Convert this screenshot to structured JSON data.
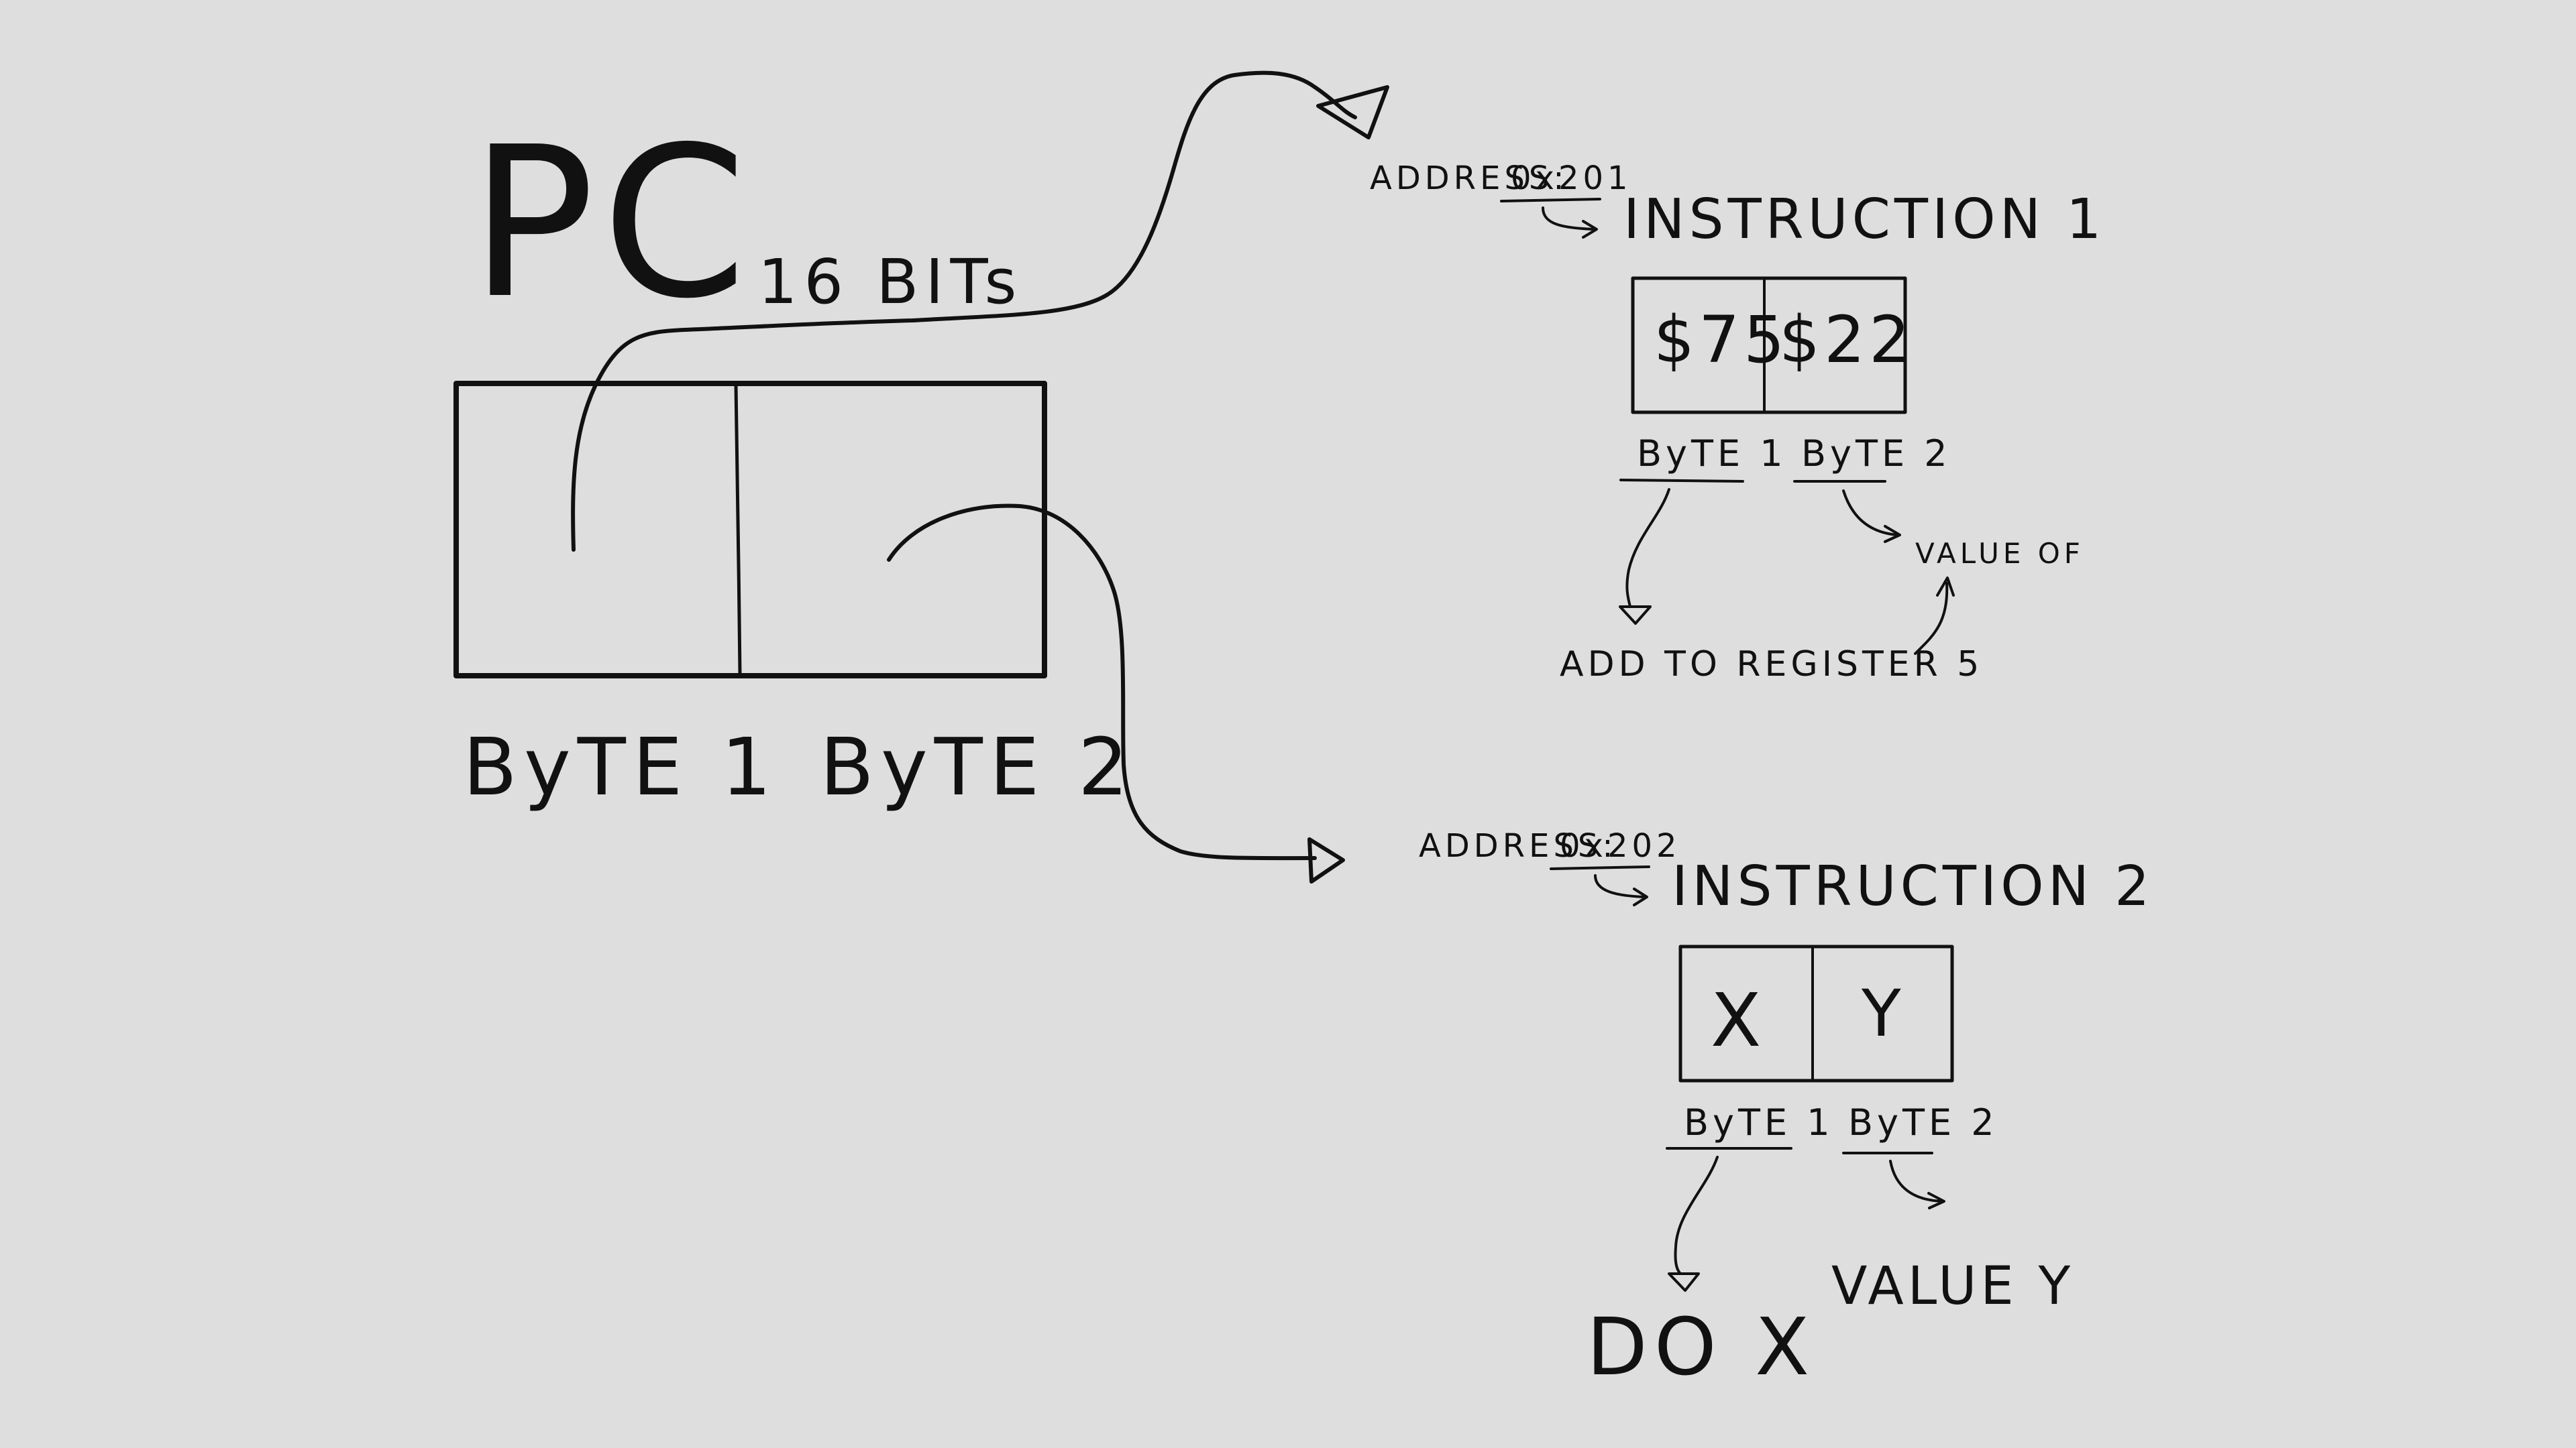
{
  "pc": {
    "title": "PC",
    "bits_label": "16 BITs",
    "byte1_label": "ByTE 1",
    "byte2_label": "ByTE 2"
  },
  "instruction1": {
    "address_prefix": "ADDRESS:",
    "address_value": "0x201",
    "title": "INSTRUCTION 1",
    "cell1": "$75",
    "cell2": "$22",
    "byte1_label": "ByTE 1",
    "byte2_label": "ByTE 2",
    "byte1_meaning": "ADD TO REGISTER 5",
    "byte2_meaning": "VALUE OF"
  },
  "instruction2": {
    "address_prefix": "ADDRESS:",
    "address_value": "0x202",
    "title": "INSTRUCTION 2",
    "cell1": "X",
    "cell2": "Y",
    "byte1_label": "ByTE 1",
    "byte2_label": "ByTE 2",
    "byte1_meaning": "DO X",
    "byte2_meaning": "VALUE Y"
  }
}
